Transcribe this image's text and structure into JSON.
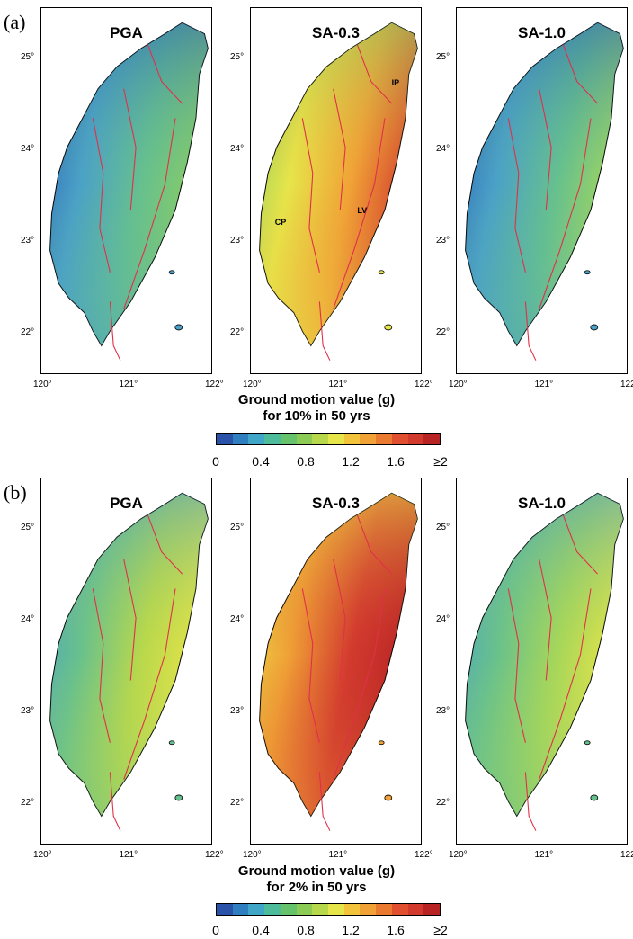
{
  "panels": [
    {
      "label": "(a)",
      "maps": [
        {
          "title": "PGA",
          "fill": [
            "#2a62b4",
            "#4aa0c8",
            "#66c08e",
            "#8ccc62"
          ]
        },
        {
          "title": "SA-0.3",
          "fill": [
            "#8ccc62",
            "#e6e64a",
            "#f0a236",
            "#d23a2e"
          ],
          "annotations": [
            "IP",
            "CP",
            "LV"
          ]
        },
        {
          "title": "SA-1.0",
          "fill": [
            "#2a62b4",
            "#4aa0c8",
            "#66c08e",
            "#a6d65a"
          ]
        }
      ],
      "colorbar_title_line1": "Ground motion value (g)",
      "colorbar_title_line2": "for 10% in 50 yrs"
    },
    {
      "label": "(b)",
      "maps": [
        {
          "title": "PGA",
          "fill": [
            "#4aa0c8",
            "#66c08e",
            "#b8d84c",
            "#e8e448"
          ]
        },
        {
          "title": "SA-0.3",
          "fill": [
            "#e8e448",
            "#f0a236",
            "#d23a2e",
            "#b82424"
          ]
        },
        {
          "title": "SA-1.0",
          "fill": [
            "#4aa0c8",
            "#66c08e",
            "#a6d65a",
            "#e8e448"
          ]
        }
      ],
      "colorbar_title_line1": "Ground motion value (g)",
      "colorbar_title_line2": "for 2% in 50 yrs"
    }
  ],
  "y_ticks": [
    "25°",
    "24°",
    "23°",
    "22°"
  ],
  "x_ticks": [
    "120°",
    "121°",
    "122°"
  ],
  "colorbar_ticks": [
    "0",
    "0.4",
    "0.8",
    "1.2",
    "1.6",
    "≥2"
  ],
  "colorbar_colors": [
    "#2a52a8",
    "#2f7fc0",
    "#3fa6c8",
    "#4ebc9a",
    "#66c36c",
    "#8ccc56",
    "#b8d84c",
    "#e6e64a",
    "#f2c43c",
    "#f0a236",
    "#ea7a30",
    "#e05030",
    "#d23a2e",
    "#b82424"
  ]
}
